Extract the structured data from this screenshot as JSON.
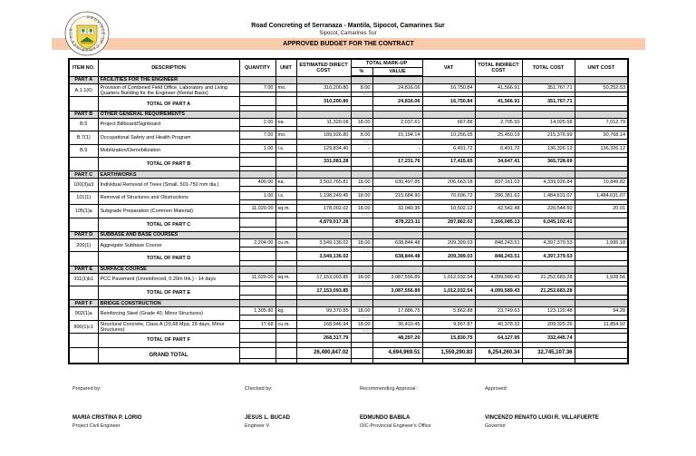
{
  "header": {
    "title": "Road Concreting of Serranaza - Mantila, Sipocot, Camarines Sur",
    "subtitle": "Sipocot, Camarines Sur",
    "banner": "APPROVED BUDGET FOR THE CONTRACT",
    "logo_text": "PROVINCE OF CAMARINES SUR"
  },
  "colors": {
    "banner": "#f8cbad",
    "section_bg": "#d9d9d9"
  },
  "table": {
    "headers": {
      "item": "ITEM NO.",
      "desc": "DESCRIPTION",
      "qty": "QUANTITY",
      "unit": "UNIT",
      "direct": "ESTIMATED DIRECT COST",
      "markup": "TOTAL MARK-UP",
      "pct": "%",
      "value": "VALUE",
      "vat": "VAT",
      "indirect": "TOTAL INDIRECT COST",
      "total": "TOTAL COST",
      "unitcost": "UNIT COST"
    },
    "rows": [
      {
        "type": "section",
        "item": "PART A",
        "desc": "FACILITIES FOR THE ENGINEER"
      },
      {
        "type": "item",
        "item": "A.1.1(6)",
        "desc": "Provision of Combined Field Office, Laboratory and Living Quarters Building for the Engineer (Rental Basis)",
        "qty": "7.00",
        "unit": "mo.",
        "direct": "310,200.80",
        "pct": "8.00",
        "value": "24,816.06",
        "vat": "16,750.84",
        "indirect": "41,566.91",
        "total": "351,767.71",
        "unitcost": "50,252.53",
        "pct_sub": "8.00"
      },
      {
        "type": "total",
        "desc": "TOTAL OF PART A",
        "direct": "310,200.80",
        "value": "24,816.06",
        "vat": "16,750.84",
        "indirect": "41,566.91",
        "total": "351,767.71"
      },
      {
        "type": "section",
        "item": "PART B",
        "desc": "OTHER GENERAL REQUIREMENTS"
      },
      {
        "type": "item",
        "item": "B.5",
        "desc": "Project Billboard/Signboard",
        "qty": "2.00",
        "unit": "ea.",
        "direct": "11,320.08",
        "pct": "18.00",
        "value": "2,037.61",
        "vat": "667.88",
        "indirect": "2,705.50",
        "total": "14,025.58",
        "unitcost": "7,012.79",
        "pct_sub": "18.00"
      },
      {
        "type": "item",
        "item": "B.7(1)",
        "desc": "Occupational Safety and Health Program",
        "qty": "7.00",
        "unit": "mo.",
        "direct": "189,926.80",
        "pct": "8.00",
        "value": "15,194.14",
        "vat": "10,256.05",
        "indirect": "25,450.19",
        "total": "215,376.99",
        "unitcost": "30,768.14",
        "pct_sub": "8.00"
      },
      {
        "type": "item",
        "item": "B.9",
        "desc": "Mobilization/Demobilization",
        "qty": "1.00",
        "unit": "l.s.",
        "direct": "129,834.40",
        "pct": "-",
        "value": "-",
        "vat": "6,491.72",
        "indirect": "6,491.72",
        "total": "136,326.12",
        "unitcost": "136,326.12",
        "pct_sub": "-"
      },
      {
        "type": "total",
        "desc": "TOTAL OF PART B",
        "direct": "331,081.28",
        "value": "17,231.76",
        "vat": "17,415.65",
        "indirect": "34,647.41",
        "total": "365,728.69"
      },
      {
        "type": "section",
        "item": "PART C",
        "desc": "EARTHWORKS"
      },
      {
        "type": "item",
        "item": "100(3)a3",
        "desc": "Individual Removal of Trees (Small, 501-750 mm dia.)",
        "qty": "400.00",
        "unit": "ea.",
        "direct": "3,502,765.81",
        "pct": "18.00",
        "value": "630,497.85",
        "vat": "206,663.18",
        "indirect": "837,161.03",
        "total": "4,339,926.84",
        "unitcost": "10,849.82",
        "pct_sub": "18.00"
      },
      {
        "type": "item",
        "item": "101(1)",
        "desc": "Removal of Structures and Obstructions",
        "qty": "1.00",
        "unit": "l.s.",
        "direct": "1,198,249.45",
        "pct": "18.00",
        "value": "215,684.90",
        "vat": "70,696.72",
        "indirect": "286,381.62",
        "total": "1,484,631.07",
        "unitcost": "1,484,631.07",
        "pct_sub": "18.00"
      },
      {
        "type": "item",
        "item": "105(1)a",
        "desc": "Subgrade Preparation (Common Material)",
        "qty": "11,020.00",
        "unit": "sq.m.",
        "direct": "178,002.02",
        "pct": "18.00",
        "value": "32,040.36",
        "vat": "10,502.12",
        "indirect": "42,542.48",
        "total": "220,544.50",
        "unitcost": "20.01",
        "pct_sub": "18.00"
      },
      {
        "type": "total",
        "desc": "TOTAL OF PART C",
        "direct": "4,879,017.28",
        "value": "878,223.11",
        "vat": "287,862.02",
        "indirect": "1,166,085.13",
        "total": "6,045,102.41"
      },
      {
        "type": "section",
        "item": "PART D",
        "desc": "SUBBASE AND BASE COURSES"
      },
      {
        "type": "item",
        "item": "200(1)",
        "desc": "Aggregate Subbase Course",
        "qty": "2,204.00",
        "unit": "cu.m.",
        "direct": "3,549,136.02",
        "pct": "18.00",
        "value": "638,844.48",
        "vat": "209,399.03",
        "indirect": "848,243.51",
        "total": "4,397,379.53",
        "unitcost": "1,995.18",
        "pct_sub": "18.00"
      },
      {
        "type": "total",
        "desc": "TOTAL OF PART D",
        "direct": "3,549,136.02",
        "value": "638,844.48",
        "vat": "209,399.03",
        "indirect": "848,243.51",
        "total": "4,397,379.53"
      },
      {
        "type": "section",
        "item": "PART E",
        "desc": "SURFACE COURSE"
      },
      {
        "type": "item",
        "item": "311(1)b1",
        "desc": "PCC Pavement (Unreinforced, 0.20m thk.) - 14 days",
        "qty": "11,020.00",
        "unit": "sq.m.",
        "direct": "17,153,093.85",
        "pct": "18.00",
        "value": "3,087,556.89",
        "vat": "1,012,032.54",
        "indirect": "4,099,589.43",
        "total": "21,252,683.28",
        "unitcost": "1,928.56",
        "pct_sub": "18.00"
      },
      {
        "type": "total",
        "desc": "TOTAL OF PART E",
        "direct": "17,153,093.85",
        "value": "3,087,556.89",
        "vat": "1,012,032.54",
        "indirect": "4,099,589.43",
        "total": "21,252,683.28"
      },
      {
        "type": "section",
        "item": "PART F",
        "desc": "BRIDGE CONSTRUCTION"
      },
      {
        "type": "item",
        "item": "902(1)a",
        "desc": "Reinforcing Steel (Grade 40, Minor Structures)",
        "qty": "1,305.90",
        "unit": "kg.",
        "direct": "99,370.85",
        "pct": "18.00",
        "value": "17,886.75",
        "vat": "5,862.88",
        "indirect": "23,749.63",
        "total": "123,120.48",
        "unitcost": "94.28",
        "pct_sub": "18.00"
      },
      {
        "type": "item",
        "item": "900(1)c1",
        "desc": "Structural Concrete, Class A (20.68 Mpa, 28 days, Minor Structures)",
        "qty": "17.68",
        "unit": "cu.m.",
        "direct": "168,946.94",
        "pct": "18.00",
        "value": "30,410.45",
        "vat": "9,967.87",
        "indirect": "40,378.32",
        "total": "209,325.26",
        "unitcost": "11,854.92",
        "pct_sub": "18.00"
      },
      {
        "type": "total",
        "desc": "TOTAL OF PART F",
        "direct": "268,317.79",
        "value": "48,297.20",
        "vat": "15,830.75",
        "indirect": "64,127.95",
        "total": "332,445.74"
      },
      {
        "type": "grand",
        "desc": "GRAND TOTAL",
        "direct": "26,490,847.02",
        "value": "4,694,969.51",
        "vat": "1,559,290.83",
        "indirect": "6,254,260.34",
        "total": "32,745,107.36"
      }
    ]
  },
  "signatures": [
    {
      "label": "Prepared by:",
      "name": "MARIA CRISTINA P. LORIO",
      "role": "Project Civil Engineer"
    },
    {
      "label": "Checked by:",
      "name": "JESUS L. BUCAD",
      "role": "Engineer V"
    },
    {
      "label": "Recommending Approval :",
      "name": "EDMUNDO BABILA",
      "role": "OIC-Provincial Engineer's Office"
    },
    {
      "label": "Approved:",
      "name": "VINCENZO RENATO LUIGI R. VILLAFUERTE",
      "role": "Governor"
    }
  ]
}
